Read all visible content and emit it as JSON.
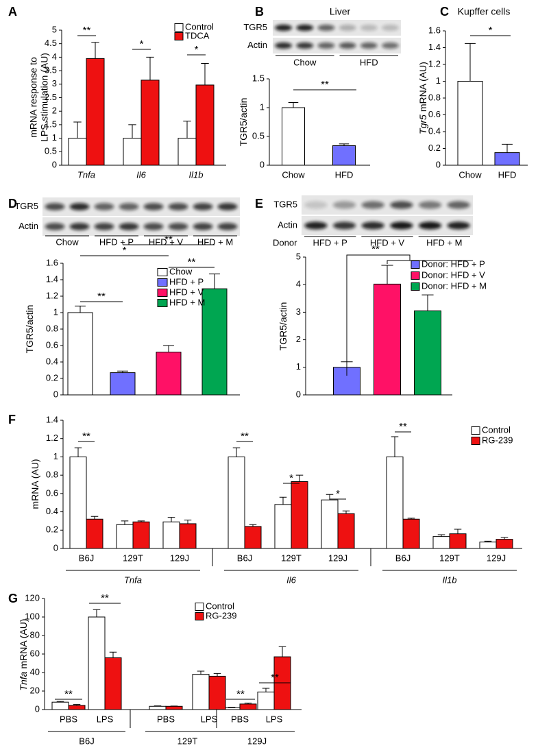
{
  "chart_data": [
    {
      "panel": "A",
      "type": "bar",
      "ylabel": [
        "mRNA response to",
        "LPS stimulation (AU)"
      ],
      "categories": [
        "Tnfa",
        "Il6",
        "Il1b"
      ],
      "series": [
        {
          "name": "Control",
          "color": "#ffffff",
          "values": [
            1,
            1,
            1
          ],
          "errors": [
            0.6,
            0.5,
            0.63
          ]
        },
        {
          "name": "TDCA",
          "color": "#ee1111",
          "values": [
            3.95,
            3.15,
            2.97
          ],
          "errors": [
            0.6,
            0.85,
            0.8
          ]
        }
      ],
      "ylim": [
        0,
        5
      ],
      "yticks": [
        0,
        0.5,
        1,
        1.5,
        2,
        2.5,
        3,
        3.5,
        4,
        4.5,
        5
      ],
      "annotations": [
        "**",
        "*",
        "*"
      ]
    },
    {
      "panel": "B",
      "type": "bar",
      "title": "Liver",
      "blot": {
        "rows": [
          "TGR5",
          "Actin"
        ],
        "lanes": [
          "Chow",
          "HFD"
        ]
      },
      "ylabel": "TGR5/actin",
      "categories": [
        "Chow",
        "HFD"
      ],
      "values": [
        1,
        0.34
      ],
      "errors": [
        0.09,
        0.03
      ],
      "colors": [
        "#ffffff",
        "#7070ff"
      ],
      "ylim": [
        0,
        1.5
      ],
      "yticks": [
        0,
        0.5,
        1,
        1.5
      ],
      "annotations": [
        "**"
      ]
    },
    {
      "panel": "C",
      "type": "bar",
      "title": "Kupffer cells",
      "ylabel_italic": "Tgr5",
      "ylabel": "mRNA (AU)",
      "categories": [
        "Chow",
        "HFD"
      ],
      "values": [
        1,
        0.15
      ],
      "errors": [
        0.45,
        0.1
      ],
      "colors": [
        "#ffffff",
        "#7070ff"
      ],
      "ylim": [
        0,
        1.6
      ],
      "yticks": [
        0,
        0.2,
        0.4,
        0.6,
        0.8,
        1,
        1.2,
        1.4,
        1.6
      ],
      "annotations": [
        "*"
      ]
    },
    {
      "panel": "D",
      "type": "bar",
      "blot": {
        "rows": [
          "TGR5",
          "Actin"
        ],
        "lanes": [
          "Chow",
          "HFD + P",
          "HFD + V",
          "HFD + M"
        ]
      },
      "ylabel": "TGR5/actin",
      "legend": [
        "Chow",
        "HFD + P",
        "HFD + V",
        "HFD + M"
      ],
      "values": [
        1,
        0.27,
        0.52,
        1.29
      ],
      "errors": [
        0.08,
        0.02,
        0.08,
        0.18
      ],
      "colors": [
        "#ffffff",
        "#7070ff",
        "#ff1166",
        "#00a651"
      ],
      "ylim": [
        0,
        1.6
      ],
      "yticks": [
        0,
        0.2,
        0.4,
        0.6,
        0.8,
        1,
        1.2,
        1.4,
        1.6
      ],
      "annotations": [
        "**",
        "*",
        "**",
        "**"
      ]
    },
    {
      "panel": "E",
      "type": "bar",
      "blot": {
        "rows": [
          "TGR5",
          "Actin"
        ],
        "label": "Donor",
        "lanes": [
          "HFD + P",
          "HFD + V",
          "HFD + M"
        ]
      },
      "ylabel": "TGR5/actin",
      "legend": [
        "Donor: HFD + P",
        "Donor: HFD + V",
        "Donor: HFD + M"
      ],
      "values": [
        1,
        4.02,
        3.05
      ],
      "errors": [
        0.2,
        0.68,
        0.58
      ],
      "colors": [
        "#7070ff",
        "#ff1166",
        "#00a651"
      ],
      "ylim": [
        0,
        5
      ],
      "yticks": [
        0,
        1,
        2,
        3,
        4,
        5
      ],
      "annotations": [
        "**"
      ]
    },
    {
      "panel": "F",
      "type": "bar",
      "ylabel": "mRNA (AU)",
      "categories": [
        "B6J",
        "129T",
        "129J",
        "B6J",
        "129T",
        "129J",
        "B6J",
        "129T",
        "129J"
      ],
      "groups": [
        "Tnfa",
        "Il6",
        "Il1b"
      ],
      "series": [
        {
          "name": "Control",
          "color": "#ffffff",
          "values": [
            1,
            0.26,
            0.29,
            1,
            0.48,
            0.53,
            1,
            0.13,
            0.07
          ],
          "errors": [
            0.1,
            0.04,
            0.05,
            0.1,
            0.08,
            0.06,
            0.22,
            0.02,
            0.01
          ]
        },
        {
          "name": "RG-239",
          "color": "#ee1111",
          "values": [
            0.32,
            0.29,
            0.27,
            0.24,
            0.73,
            0.38,
            0.32,
            0.16,
            0.1
          ],
          "errors": [
            0.03,
            0.01,
            0.04,
            0.02,
            0.07,
            0.03,
            0.01,
            0.05,
            0.02
          ]
        }
      ],
      "ylim": [
        0,
        1.4
      ],
      "yticks": [
        0,
        0.2,
        0.4,
        0.6,
        0.8,
        1,
        1.2,
        1.4
      ],
      "annotations": [
        "**",
        "**",
        "*",
        "*",
        "**"
      ]
    },
    {
      "panel": "G",
      "type": "bar",
      "ylabel_italic": "Tnfa",
      "ylabel": "mRNA (AU)",
      "categories": [
        "PBS",
        "LPS",
        "PBS",
        "LPS",
        "PBS",
        "LPS"
      ],
      "groups": [
        "B6J",
        "129T",
        "129J"
      ],
      "series": [
        {
          "name": "Control",
          "color": "#ffffff",
          "values": [
            8,
            100,
            3.5,
            38,
            2,
            19
          ],
          "errors": [
            0.8,
            8,
            0.5,
            3.5,
            0.5,
            4
          ]
        },
        {
          "name": "RG-239",
          "color": "#ee1111",
          "values": [
            4.5,
            56,
            3.5,
            36,
            6,
            57
          ],
          "errors": [
            1,
            6,
            0.3,
            3,
            1,
            11
          ]
        }
      ],
      "ylim": [
        0,
        120
      ],
      "yticks": [
        0,
        20,
        40,
        60,
        80,
        100,
        120
      ],
      "annotations": [
        "**",
        "**",
        "**",
        "**"
      ]
    }
  ]
}
